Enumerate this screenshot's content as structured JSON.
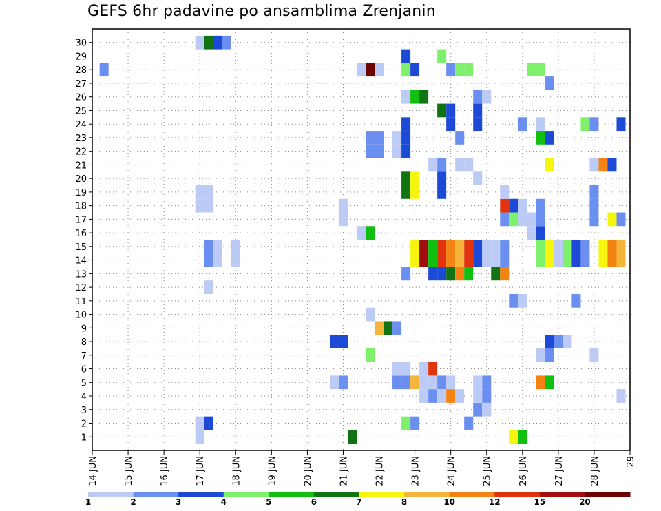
{
  "chart_data": {
    "type": "heatmap",
    "title": "GEFS 6hr padavine po ansamblima Zrenjanin",
    "xlabel": "",
    "ylabel": "",
    "x_tick_labels": [
      "14 JUN",
      "15 JUN",
      "16 JUN",
      "17 JUN",
      "18 JUN",
      "19 JUN",
      "20 JUN",
      "21 JUN",
      "22 JUN",
      "23 JUN",
      "24 JUN",
      "25 JUN",
      "26 JUN",
      "27 JUN",
      "28 JUN",
      "29"
    ],
    "y_tick_labels": [
      "1",
      "2",
      "3",
      "4",
      "5",
      "6",
      "7",
      "8",
      "9",
      "10",
      "11",
      "12",
      "13",
      "14",
      "15",
      "16",
      "17",
      "18",
      "19",
      "20",
      "21",
      "22",
      "23",
      "24",
      "25",
      "26",
      "27",
      "28",
      "29",
      "30"
    ],
    "xlim_days": [
      0,
      15
    ],
    "ylim": [
      0,
      31
    ],
    "time_step_hours": 6,
    "grid": true,
    "grid_style": "dotted",
    "legend": {
      "position": "bottom",
      "tick_labels": [
        "1",
        "2",
        "3",
        "4",
        "5",
        "6",
        "7",
        "8",
        "10",
        "12",
        "15",
        "20"
      ],
      "colors": [
        "#bccbf5",
        "#6b8ff0",
        "#1c4ad6",
        "#7ef06b",
        "#10bf10",
        "#117311",
        "#f5f50e",
        "#f5b53a",
        "#f58314",
        "#e0340e",
        "#a00e0e",
        "#6b0303"
      ]
    },
    "cells": [
      {
        "d": 0.33,
        "m": 28,
        "c": 1
      },
      {
        "d": 3.0,
        "m": 1,
        "c": 0
      },
      {
        "d": 3.0,
        "m": 2,
        "c": 0
      },
      {
        "d": 3.25,
        "m": 2,
        "c": 2
      },
      {
        "d": 3.25,
        "m": 12,
        "c": 0
      },
      {
        "d": 3.25,
        "m": 14,
        "c": 1
      },
      {
        "d": 3.5,
        "m": 14,
        "c": 0
      },
      {
        "d": 3.25,
        "m": 15,
        "c": 1
      },
      {
        "d": 3.5,
        "m": 15,
        "c": 0
      },
      {
        "d": 3.0,
        "m": 18,
        "c": 0
      },
      {
        "d": 3.25,
        "m": 18,
        "c": 0
      },
      {
        "d": 3.0,
        "m": 19,
        "c": 0
      },
      {
        "d": 3.25,
        "m": 19,
        "c": 0
      },
      {
        "d": 3.0,
        "m": 30,
        "c": 0
      },
      {
        "d": 3.25,
        "m": 30,
        "c": 5
      },
      {
        "d": 3.5,
        "m": 30,
        "c": 2
      },
      {
        "d": 3.75,
        "m": 30,
        "c": 1
      },
      {
        "d": 4.0,
        "m": 14,
        "c": 0
      },
      {
        "d": 4.0,
        "m": 15,
        "c": 0
      },
      {
        "d": 6.75,
        "m": 5,
        "c": 0
      },
      {
        "d": 7.0,
        "m": 5,
        "c": 1
      },
      {
        "d": 6.75,
        "m": 8,
        "c": 2
      },
      {
        "d": 7.0,
        "m": 8,
        "c": 2
      },
      {
        "d": 7.25,
        "m": 1,
        "c": 5
      },
      {
        "d": 7.0,
        "m": 17,
        "c": 0
      },
      {
        "d": 7.0,
        "m": 18,
        "c": 0
      },
      {
        "d": 7.75,
        "m": 7,
        "c": 3
      },
      {
        "d": 8.0,
        "m": 9,
        "c": 7
      },
      {
        "d": 8.25,
        "m": 9,
        "c": 5
      },
      {
        "d": 8.5,
        "m": 9,
        "c": 1
      },
      {
        "d": 7.75,
        "m": 10,
        "c": 0
      },
      {
        "d": 7.5,
        "m": 16,
        "c": 0
      },
      {
        "d": 7.75,
        "m": 16,
        "c": 4
      },
      {
        "d": 7.5,
        "m": 28,
        "c": 0
      },
      {
        "d": 7.75,
        "m": 28,
        "c": 11
      },
      {
        "d": 8.0,
        "m": 28,
        "c": 0
      },
      {
        "d": 7.75,
        "m": 22,
        "c": 1
      },
      {
        "d": 8.0,
        "m": 22,
        "c": 1
      },
      {
        "d": 7.75,
        "m": 23,
        "c": 1
      },
      {
        "d": 8.0,
        "m": 23,
        "c": 1
      },
      {
        "d": 8.5,
        "m": 22,
        "c": 0
      },
      {
        "d": 8.5,
        "m": 23,
        "c": 0
      },
      {
        "d": 8.75,
        "m": 22,
        "c": 2
      },
      {
        "d": 8.75,
        "m": 23,
        "c": 2
      },
      {
        "d": 8.75,
        "m": 24,
        "c": 2
      },
      {
        "d": 8.75,
        "m": 29,
        "c": 2
      },
      {
        "d": 8.75,
        "m": 28,
        "c": 3
      },
      {
        "d": 9.0,
        "m": 28,
        "c": 2
      },
      {
        "d": 8.5,
        "m": 5,
        "c": 1
      },
      {
        "d": 8.75,
        "m": 5,
        "c": 1
      },
      {
        "d": 9.0,
        "m": 5,
        "c": 7
      },
      {
        "d": 8.5,
        "m": 6,
        "c": 0
      },
      {
        "d": 8.75,
        "m": 6,
        "c": 0
      },
      {
        "d": 9.25,
        "m": 5,
        "c": 0
      },
      {
        "d": 9.25,
        "m": 6,
        "c": 0
      },
      {
        "d": 9.5,
        "m": 6,
        "c": 9
      },
      {
        "d": 9.25,
        "m": 4,
        "c": 0
      },
      {
        "d": 9.5,
        "m": 4,
        "c": 1
      },
      {
        "d": 9.5,
        "m": 5,
        "c": 0
      },
      {
        "d": 9.75,
        "m": 5,
        "c": 1
      },
      {
        "d": 10.0,
        "m": 5,
        "c": 0
      },
      {
        "d": 9.75,
        "m": 4,
        "c": 0
      },
      {
        "d": 10.0,
        "m": 4,
        "c": 8
      },
      {
        "d": 10.25,
        "m": 4,
        "c": 0
      },
      {
        "d": 8.75,
        "m": 2,
        "c": 3
      },
      {
        "d": 9.0,
        "m": 2,
        "c": 1
      },
      {
        "d": 8.75,
        "m": 13,
        "c": 1
      },
      {
        "d": 9.0,
        "m": 14,
        "c": 6
      },
      {
        "d": 9.25,
        "m": 14,
        "c": 10
      },
      {
        "d": 9.5,
        "m": 14,
        "c": 4
      },
      {
        "d": 9.75,
        "m": 14,
        "c": 9
      },
      {
        "d": 10.0,
        "m": 14,
        "c": 8
      },
      {
        "d": 10.25,
        "m": 14,
        "c": 7
      },
      {
        "d": 10.5,
        "m": 14,
        "c": 9
      },
      {
        "d": 10.75,
        "m": 14,
        "c": 2
      },
      {
        "d": 11.0,
        "m": 14,
        "c": 0
      },
      {
        "d": 11.25,
        "m": 14,
        "c": 0
      },
      {
        "d": 11.5,
        "m": 14,
        "c": 1
      },
      {
        "d": 9.0,
        "m": 15,
        "c": 6
      },
      {
        "d": 9.25,
        "m": 15,
        "c": 10
      },
      {
        "d": 9.5,
        "m": 15,
        "c": 4
      },
      {
        "d": 9.75,
        "m": 15,
        "c": 9
      },
      {
        "d": 10.0,
        "m": 15,
        "c": 8
      },
      {
        "d": 10.25,
        "m": 15,
        "c": 7
      },
      {
        "d": 10.5,
        "m": 15,
        "c": 9
      },
      {
        "d": 10.75,
        "m": 15,
        "c": 2
      },
      {
        "d": 11.0,
        "m": 15,
        "c": 0
      },
      {
        "d": 11.25,
        "m": 15,
        "c": 0
      },
      {
        "d": 11.5,
        "m": 15,
        "c": 1
      },
      {
        "d": 9.5,
        "m": 13,
        "c": 2
      },
      {
        "d": 9.75,
        "m": 13,
        "c": 2
      },
      {
        "d": 10.0,
        "m": 13,
        "c": 5
      },
      {
        "d": 10.25,
        "m": 13,
        "c": 8
      },
      {
        "d": 10.5,
        "m": 13,
        "c": 4
      },
      {
        "d": 11.25,
        "m": 13,
        "c": 5
      },
      {
        "d": 11.5,
        "m": 13,
        "c": 8
      },
      {
        "d": 8.75,
        "m": 19,
        "c": 5
      },
      {
        "d": 9.0,
        "m": 19,
        "c": 6
      },
      {
        "d": 8.75,
        "m": 20,
        "c": 5
      },
      {
        "d": 9.0,
        "m": 20,
        "c": 6
      },
      {
        "d": 9.75,
        "m": 19,
        "c": 2
      },
      {
        "d": 9.75,
        "m": 20,
        "c": 2
      },
      {
        "d": 9.75,
        "m": 21,
        "c": 1
      },
      {
        "d": 9.5,
        "m": 21,
        "c": 0
      },
      {
        "d": 10.25,
        "m": 21,
        "c": 0
      },
      {
        "d": 10.5,
        "m": 21,
        "c": 0
      },
      {
        "d": 10.75,
        "m": 20,
        "c": 0
      },
      {
        "d": 8.75,
        "m": 26,
        "c": 0
      },
      {
        "d": 9.0,
        "m": 26,
        "c": 4
      },
      {
        "d": 9.25,
        "m": 26,
        "c": 5
      },
      {
        "d": 9.75,
        "m": 25,
        "c": 5
      },
      {
        "d": 10.0,
        "m": 25,
        "c": 2
      },
      {
        "d": 10.0,
        "m": 24,
        "c": 2
      },
      {
        "d": 9.75,
        "m": 29,
        "c": 3
      },
      {
        "d": 10.0,
        "m": 28,
        "c": 1
      },
      {
        "d": 10.25,
        "m": 28,
        "c": 3
      },
      {
        "d": 10.5,
        "m": 28,
        "c": 3
      },
      {
        "d": 10.25,
        "m": 23,
        "c": 1
      },
      {
        "d": 10.75,
        "m": 24,
        "c": 2
      },
      {
        "d": 10.75,
        "m": 25,
        "c": 2
      },
      {
        "d": 10.75,
        "m": 26,
        "c": 1
      },
      {
        "d": 11.0,
        "m": 26,
        "c": 0
      },
      {
        "d": 10.5,
        "m": 2,
        "c": 1
      },
      {
        "d": 10.75,
        "m": 3,
        "c": 1
      },
      {
        "d": 11.0,
        "m": 3,
        "c": 0
      },
      {
        "d": 10.75,
        "m": 4,
        "c": 0
      },
      {
        "d": 11.0,
        "m": 4,
        "c": 1
      },
      {
        "d": 11.0,
        "m": 5,
        "c": 1
      },
      {
        "d": 10.75,
        "m": 5,
        "c": 0
      },
      {
        "d": 11.75,
        "m": 1,
        "c": 6
      },
      {
        "d": 12.0,
        "m": 1,
        "c": 4
      },
      {
        "d": 11.75,
        "m": 11,
        "c": 1
      },
      {
        "d": 12.0,
        "m": 11,
        "c": 0
      },
      {
        "d": 11.5,
        "m": 17,
        "c": 1
      },
      {
        "d": 11.75,
        "m": 17,
        "c": 3
      },
      {
        "d": 12.0,
        "m": 17,
        "c": 0
      },
      {
        "d": 12.25,
        "m": 17,
        "c": 0
      },
      {
        "d": 11.5,
        "m": 18,
        "c": 9
      },
      {
        "d": 11.75,
        "m": 18,
        "c": 2
      },
      {
        "d": 12.0,
        "m": 18,
        "c": 0
      },
      {
        "d": 11.5,
        "m": 19,
        "c": 0
      },
      {
        "d": 12.0,
        "m": 24,
        "c": 1
      },
      {
        "d": 12.5,
        "m": 24,
        "c": 0
      },
      {
        "d": 12.25,
        "m": 28,
        "c": 3
      },
      {
        "d": 12.5,
        "m": 28,
        "c": 3
      },
      {
        "d": 12.25,
        "m": 16,
        "c": 0
      },
      {
        "d": 12.5,
        "m": 16,
        "c": 2
      },
      {
        "d": 12.5,
        "m": 17,
        "c": 1
      },
      {
        "d": 12.5,
        "m": 18,
        "c": 1
      },
      {
        "d": 12.5,
        "m": 23,
        "c": 4
      },
      {
        "d": 12.75,
        "m": 23,
        "c": 2
      },
      {
        "d": 12.75,
        "m": 27,
        "c": 1
      },
      {
        "d": 12.75,
        "m": 21,
        "c": 6
      },
      {
        "d": 12.5,
        "m": 14,
        "c": 3
      },
      {
        "d": 12.75,
        "m": 14,
        "c": 6
      },
      {
        "d": 13.0,
        "m": 14,
        "c": 0
      },
      {
        "d": 13.25,
        "m": 14,
        "c": 3
      },
      {
        "d": 13.5,
        "m": 14,
        "c": 2
      },
      {
        "d": 13.75,
        "m": 14,
        "c": 1
      },
      {
        "d": 12.5,
        "m": 15,
        "c": 3
      },
      {
        "d": 12.75,
        "m": 15,
        "c": 6
      },
      {
        "d": 13.0,
        "m": 15,
        "c": 0
      },
      {
        "d": 13.25,
        "m": 15,
        "c": 3
      },
      {
        "d": 13.5,
        "m": 15,
        "c": 2
      },
      {
        "d": 13.75,
        "m": 15,
        "c": 1
      },
      {
        "d": 12.5,
        "m": 7,
        "c": 0
      },
      {
        "d": 12.75,
        "m": 7,
        "c": 1
      },
      {
        "d": 12.75,
        "m": 8,
        "c": 2
      },
      {
        "d": 13.0,
        "m": 8,
        "c": 1
      },
      {
        "d": 13.25,
        "m": 8,
        "c": 0
      },
      {
        "d": 12.5,
        "m": 5,
        "c": 8
      },
      {
        "d": 12.75,
        "m": 5,
        "c": 4
      },
      {
        "d": 13.5,
        "m": 11,
        "c": 1
      },
      {
        "d": 14.0,
        "m": 7,
        "c": 0
      },
      {
        "d": 13.75,
        "m": 24,
        "c": 3
      },
      {
        "d": 14.0,
        "m": 24,
        "c": 1
      },
      {
        "d": 14.0,
        "m": 21,
        "c": 0
      },
      {
        "d": 14.25,
        "m": 21,
        "c": 8
      },
      {
        "d": 14.5,
        "m": 21,
        "c": 2
      },
      {
        "d": 14.0,
        "m": 17,
        "c": 1
      },
      {
        "d": 14.0,
        "m": 18,
        "c": 1
      },
      {
        "d": 14.0,
        "m": 19,
        "c": 1
      },
      {
        "d": 14.5,
        "m": 17,
        "c": 6
      },
      {
        "d": 14.75,
        "m": 17,
        "c": 1
      },
      {
        "d": 14.25,
        "m": 14,
        "c": 6
      },
      {
        "d": 14.5,
        "m": 14,
        "c": 8
      },
      {
        "d": 14.75,
        "m": 14,
        "c": 7
      },
      {
        "d": 14.25,
        "m": 15,
        "c": 6
      },
      {
        "d": 14.5,
        "m": 15,
        "c": 8
      },
      {
        "d": 14.75,
        "m": 15,
        "c": 7
      },
      {
        "d": 14.75,
        "m": 24,
        "c": 2
      },
      {
        "d": 14.75,
        "m": 4,
        "c": 0
      }
    ]
  }
}
